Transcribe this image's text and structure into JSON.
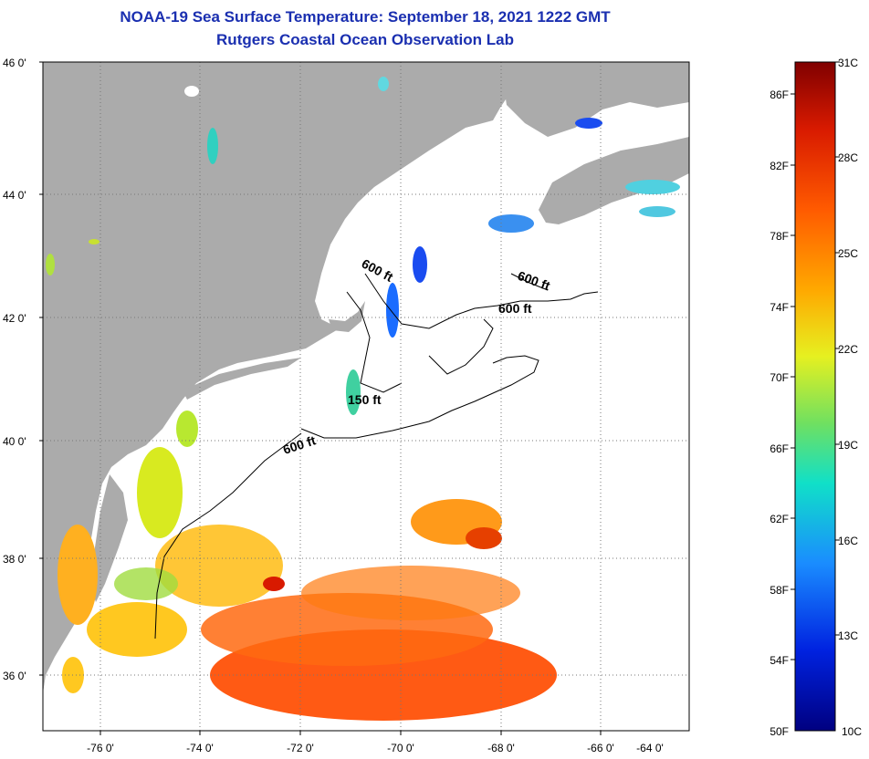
{
  "header": {
    "title": "NOAA-19 Sea Surface Temperature:  September 18, 2021 1222 GMT",
    "subtitle": "Rutgers Coastal Ocean Observation Lab"
  },
  "map": {
    "lon_labels": [
      "-76 0'",
      "-74 0'",
      "-72 0'",
      "-70 0'",
      "-68 0'",
      "-66 0'",
      "-64 0'"
    ],
    "lat_labels": [
      "46 0'",
      "44 0'",
      "42 0'",
      "40 0'",
      "38 0'",
      "36 0'"
    ],
    "depth_labels": [
      "600 ft",
      "600 ft",
      "600 ft",
      "150 ft",
      "600 ft"
    ],
    "colors": {
      "land": "#ababab",
      "ocean_nodata": "#ffffff"
    }
  },
  "colorbar": {
    "f_labels": [
      "86F",
      "82F",
      "78F",
      "74F",
      "70F",
      "66F",
      "62F",
      "58F",
      "54F",
      "50F"
    ],
    "c_labels": [
      "31C",
      "28C",
      "25C",
      "22C",
      "19C",
      "16C",
      "13C",
      "10C"
    ],
    "stops": [
      "#800000",
      "#d81a00",
      "#ff5a00",
      "#ffa800",
      "#e6f020",
      "#70e060",
      "#10e0c8",
      "#1a8cff",
      "#0022e0",
      "#000080"
    ]
  }
}
